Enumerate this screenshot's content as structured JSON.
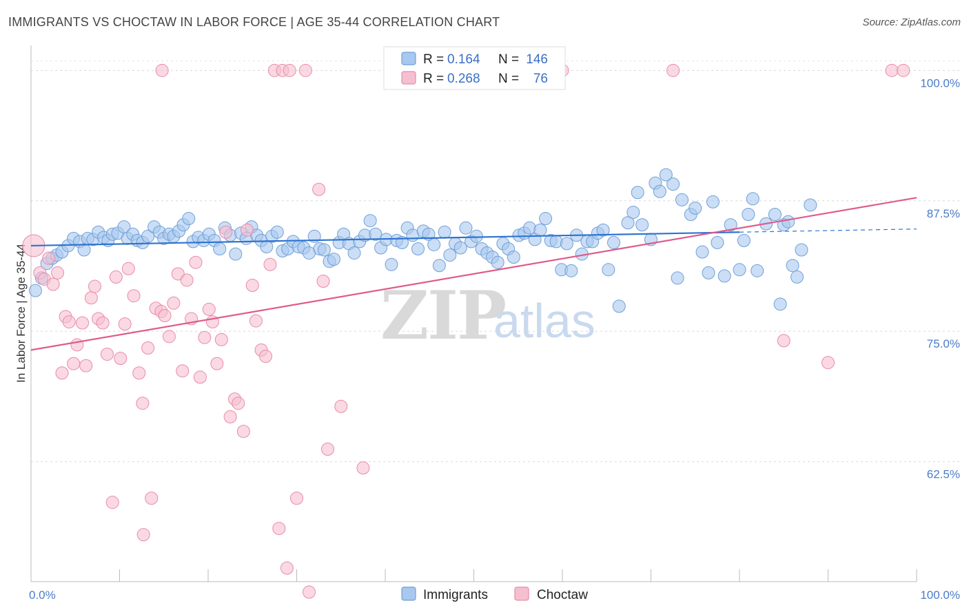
{
  "title": "IMMIGRANTS VS CHOCTAW IN LABOR FORCE | AGE 35-44 CORRELATION CHART",
  "source": "Source: ZipAtlas.com",
  "watermark": {
    "part1": "ZIP",
    "part2": "atlas"
  },
  "chart_data": {
    "type": "scatter",
    "xlabel": "",
    "ylabel": "In Labor Force | Age 35-44",
    "xlim": [
      0,
      100
    ],
    "ylim": [
      51,
      102
    ],
    "x_tick_labels": [
      {
        "value": 0,
        "label": "0.0%"
      },
      {
        "value": 100,
        "label": "100.0%"
      }
    ],
    "y_ticks": [
      {
        "value": 100,
        "label": "100.0%"
      },
      {
        "value": 87.5,
        "label": "87.5%"
      },
      {
        "value": 75,
        "label": "75.0%"
      },
      {
        "value": 62.5,
        "label": "62.5%"
      }
    ],
    "grid": true,
    "legend_position": "top-center",
    "colors": {
      "immigrants_fill": "#a9c8ef",
      "immigrants_stroke": "#6f9fd8",
      "immigrants_line": "#2f73d0",
      "choctaw_fill": "#f6bfd0",
      "choctaw_stroke": "#e88aa9",
      "choctaw_line": "#e05a8a"
    },
    "legend": {
      "immigrants": {
        "r_label": "R =",
        "r_value": "0.164",
        "n_label": "N =",
        "n_value": "146"
      },
      "choctaw": {
        "r_label": "R =",
        "r_value": "0.268",
        "n_label": "N =",
        "n_value": "76"
      }
    },
    "series": [
      {
        "name": "Immigrants",
        "trend": {
          "x": [
            0,
            80
          ],
          "y": [
            83.2,
            84.5
          ],
          "dashed_to_x": 100,
          "dashed_to_y": 84.8
        },
        "points": [
          [
            0.5,
            78.9
          ],
          [
            1.2,
            80.1
          ],
          [
            1.8,
            81.5
          ],
          [
            2.4,
            82.0
          ],
          [
            2.9,
            82.3
          ],
          [
            3.5,
            82.6
          ],
          [
            4.2,
            83.2
          ],
          [
            4.8,
            83.9
          ],
          [
            5.5,
            83.6
          ],
          [
            6.0,
            82.8
          ],
          [
            6.4,
            83.9
          ],
          [
            7.0,
            83.8
          ],
          [
            7.6,
            84.5
          ],
          [
            8.2,
            84.0
          ],
          [
            8.7,
            83.7
          ],
          [
            9.2,
            84.3
          ],
          [
            9.8,
            84.4
          ],
          [
            10.5,
            85.0
          ],
          [
            10.9,
            83.9
          ],
          [
            11.5,
            84.3
          ],
          [
            12.0,
            83.7
          ],
          [
            12.6,
            83.5
          ],
          [
            13.2,
            84.1
          ],
          [
            13.9,
            85.0
          ],
          [
            14.5,
            84.5
          ],
          [
            15.0,
            83.9
          ],
          [
            15.6,
            84.3
          ],
          [
            16.1,
            84.1
          ],
          [
            16.7,
            84.6
          ],
          [
            17.2,
            85.2
          ],
          [
            17.8,
            85.8
          ],
          [
            18.3,
            83.6
          ],
          [
            18.9,
            84.0
          ],
          [
            19.5,
            83.7
          ],
          [
            20.1,
            84.3
          ],
          [
            20.7,
            83.7
          ],
          [
            21.3,
            82.9
          ],
          [
            21.9,
            84.9
          ],
          [
            22.5,
            84.2
          ],
          [
            23.1,
            82.4
          ],
          [
            23.7,
            84.4
          ],
          [
            24.3,
            83.9
          ],
          [
            24.9,
            85.0
          ],
          [
            25.5,
            84.2
          ],
          [
            26.0,
            83.7
          ],
          [
            26.6,
            83.1
          ],
          [
            27.2,
            84.1
          ],
          [
            27.8,
            84.5
          ],
          [
            28.4,
            82.7
          ],
          [
            29.0,
            82.9
          ],
          [
            29.6,
            83.6
          ],
          [
            30.2,
            83.1
          ],
          [
            30.8,
            83.0
          ],
          [
            31.4,
            82.5
          ],
          [
            32.0,
            84.1
          ],
          [
            32.6,
            82.9
          ],
          [
            33.1,
            82.8
          ],
          [
            33.7,
            81.7
          ],
          [
            34.2,
            81.9
          ],
          [
            34.8,
            83.5
          ],
          [
            35.3,
            84.3
          ],
          [
            35.9,
            83.4
          ],
          [
            36.5,
            82.5
          ],
          [
            37.1,
            83.6
          ],
          [
            37.7,
            84.2
          ],
          [
            38.3,
            85.6
          ],
          [
            38.9,
            84.3
          ],
          [
            39.5,
            83.0
          ],
          [
            40.1,
            83.8
          ],
          [
            40.7,
            81.4
          ],
          [
            41.3,
            83.7
          ],
          [
            41.9,
            83.5
          ],
          [
            42.5,
            84.9
          ],
          [
            43.1,
            84.2
          ],
          [
            43.7,
            82.9
          ],
          [
            44.3,
            84.6
          ],
          [
            44.9,
            84.3
          ],
          [
            45.5,
            83.3
          ],
          [
            46.1,
            81.3
          ],
          [
            46.7,
            84.5
          ],
          [
            47.3,
            82.3
          ],
          [
            47.9,
            83.4
          ],
          [
            48.5,
            83.0
          ],
          [
            49.1,
            84.9
          ],
          [
            49.7,
            83.6
          ],
          [
            50.3,
            84.1
          ],
          [
            50.9,
            82.9
          ],
          [
            51.5,
            82.5
          ],
          [
            52.1,
            82.1
          ],
          [
            52.7,
            81.6
          ],
          [
            53.3,
            83.4
          ],
          [
            53.9,
            82.9
          ],
          [
            54.5,
            82.1
          ],
          [
            55.1,
            84.2
          ],
          [
            55.7,
            84.4
          ],
          [
            56.3,
            84.9
          ],
          [
            56.9,
            83.8
          ],
          [
            57.5,
            84.7
          ],
          [
            58.1,
            85.8
          ],
          [
            58.7,
            83.7
          ],
          [
            59.3,
            83.6
          ],
          [
            59.9,
            80.9
          ],
          [
            60.5,
            83.4
          ],
          [
            61.0,
            80.8
          ],
          [
            61.6,
            84.2
          ],
          [
            62.2,
            82.4
          ],
          [
            62.8,
            83.6
          ],
          [
            63.4,
            83.6
          ],
          [
            64.0,
            84.4
          ],
          [
            64.6,
            84.7
          ],
          [
            65.2,
            80.9
          ],
          [
            65.8,
            83.5
          ],
          [
            66.4,
            77.4
          ],
          [
            67.4,
            85.4
          ],
          [
            68.0,
            86.4
          ],
          [
            68.5,
            88.3
          ],
          [
            69.0,
            85.2
          ],
          [
            70.0,
            83.8
          ],
          [
            70.5,
            89.2
          ],
          [
            71.0,
            88.4
          ],
          [
            71.7,
            90.0
          ],
          [
            72.5,
            89.1
          ],
          [
            73.0,
            80.1
          ],
          [
            73.5,
            87.6
          ],
          [
            74.5,
            86.2
          ],
          [
            75.0,
            86.8
          ],
          [
            75.8,
            82.6
          ],
          [
            76.5,
            80.6
          ],
          [
            77.0,
            87.4
          ],
          [
            77.5,
            83.5
          ],
          [
            78.3,
            80.3
          ],
          [
            79.0,
            85.2
          ],
          [
            80.0,
            80.9
          ],
          [
            80.5,
            83.7
          ],
          [
            81.0,
            86.2
          ],
          [
            81.5,
            87.7
          ],
          [
            82.0,
            80.8
          ],
          [
            83.0,
            85.3
          ],
          [
            84.0,
            86.2
          ],
          [
            84.6,
            77.6
          ],
          [
            85.0,
            85.2
          ],
          [
            85.5,
            85.5
          ],
          [
            86.0,
            81.3
          ],
          [
            86.5,
            80.2
          ],
          [
            87.0,
            82.8
          ],
          [
            88.0,
            87.1
          ]
        ]
      },
      {
        "name": "Choctaw",
        "trend": {
          "x": [
            0,
            100
          ],
          "y": [
            73.2,
            87.8
          ]
        },
        "points": [
          [
            0.3,
            83.2
          ],
          [
            1.0,
            80.6
          ],
          [
            1.5,
            80.0
          ],
          [
            2.0,
            82.0
          ],
          [
            2.5,
            79.5
          ],
          [
            3.0,
            80.6
          ],
          [
            3.5,
            71.0
          ],
          [
            3.9,
            76.4
          ],
          [
            4.3,
            75.9
          ],
          [
            4.8,
            71.9
          ],
          [
            5.2,
            73.7
          ],
          [
            5.8,
            75.8
          ],
          [
            6.2,
            71.7
          ],
          [
            6.8,
            78.2
          ],
          [
            7.2,
            79.3
          ],
          [
            7.6,
            76.2
          ],
          [
            8.1,
            75.8
          ],
          [
            8.6,
            72.8
          ],
          [
            9.2,
            58.6
          ],
          [
            9.6,
            80.2
          ],
          [
            10.1,
            72.4
          ],
          [
            10.6,
            75.7
          ],
          [
            11.0,
            81.0
          ],
          [
            11.6,
            78.4
          ],
          [
            12.2,
            71.0
          ],
          [
            12.6,
            68.1
          ],
          [
            13.2,
            73.4
          ],
          [
            13.6,
            59.0
          ],
          [
            14.1,
            77.2
          ],
          [
            14.7,
            76.9
          ],
          [
            15.1,
            76.5
          ],
          [
            15.6,
            74.5
          ],
          [
            16.1,
            77.7
          ],
          [
            16.6,
            80.5
          ],
          [
            17.1,
            71.2
          ],
          [
            17.6,
            79.9
          ],
          [
            18.1,
            76.2
          ],
          [
            18.6,
            81.6
          ],
          [
            19.1,
            70.6
          ],
          [
            19.6,
            74.4
          ],
          [
            20.1,
            77.1
          ],
          [
            20.5,
            75.9
          ],
          [
            21.0,
            71.9
          ],
          [
            21.5,
            74.2
          ],
          [
            22.0,
            84.5
          ],
          [
            22.5,
            66.8
          ],
          [
            23.0,
            68.5
          ],
          [
            23.4,
            68.1
          ],
          [
            24.0,
            65.4
          ],
          [
            24.4,
            84.7
          ],
          [
            25.0,
            79.4
          ],
          [
            25.4,
            76.0
          ],
          [
            26.0,
            73.2
          ],
          [
            26.5,
            72.6
          ],
          [
            27.0,
            81.4
          ],
          [
            27.5,
            100.0
          ],
          [
            28.0,
            56.1
          ],
          [
            28.4,
            100.0
          ],
          [
            28.9,
            52.3
          ],
          [
            29.2,
            100.0
          ],
          [
            30.0,
            59.0
          ],
          [
            31.0,
            100.0
          ],
          [
            31.4,
            50.0
          ],
          [
            32.5,
            88.6
          ],
          [
            33.0,
            79.8
          ],
          [
            33.5,
            63.7
          ],
          [
            35.0,
            67.8
          ],
          [
            37.5,
            61.9
          ],
          [
            60.0,
            100.0
          ],
          [
            72.5,
            100.0
          ],
          [
            85.0,
            74.1
          ],
          [
            90.0,
            72.0
          ],
          [
            97.2,
            100.0
          ],
          [
            98.5,
            100.0
          ],
          [
            12.7,
            55.5
          ],
          [
            14.8,
            100.0
          ]
        ]
      }
    ]
  },
  "bottom_legend": {
    "immigrants": "Immigrants",
    "choctaw": "Choctaw"
  }
}
